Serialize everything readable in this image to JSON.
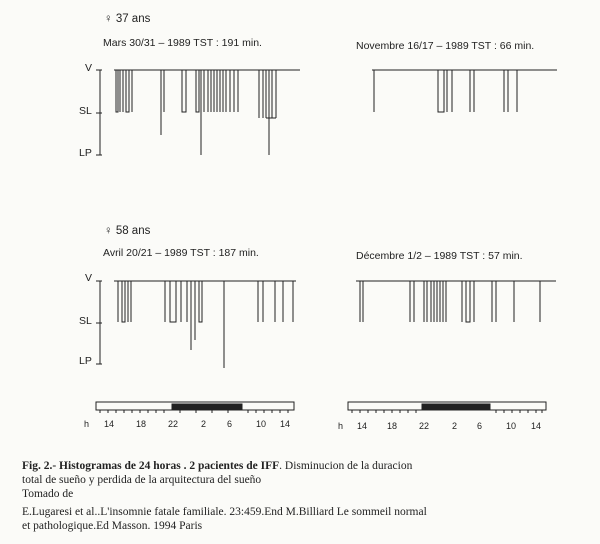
{
  "panels": [
    {
      "patient": "♀ 37 ans",
      "sessions": [
        {
          "title": "Mars 30/31 – 1989   TST : 191 min."
        },
        {
          "title": "Novembre 16/17 – 1989   TST : 66 min."
        }
      ]
    },
    {
      "patient": "♀ 58 ans",
      "sessions": [
        {
          "title": "Avril 20/21 – 1989   TST : 187 min."
        },
        {
          "title": "Décembre 1/2 – 1989   TST : 57 min."
        }
      ]
    }
  ],
  "stage_labels": {
    "v": "V",
    "sl": "SL",
    "lp": "LP"
  },
  "hours_label": "h",
  "hour_ticks": [
    "14",
    "18",
    "22",
    "2",
    "6",
    "10",
    "14"
  ],
  "caption": {
    "fig_title": "Fig. 2.- Histogramas de 24 horas . 2  pacientes de IFF",
    "line1_rest": ". Disminucion de la duracion",
    "line2": "total de sueño y perdida de la arquitectura del sueño",
    "line3": "Tomado de",
    "line4": "E.Lugaresi et al..L'insomnie fatale familiale. 23:459.End M.Billiard Le sommeil normal",
    "line5": "et pathologique.Ed Masson. 1994 Paris"
  }
}
